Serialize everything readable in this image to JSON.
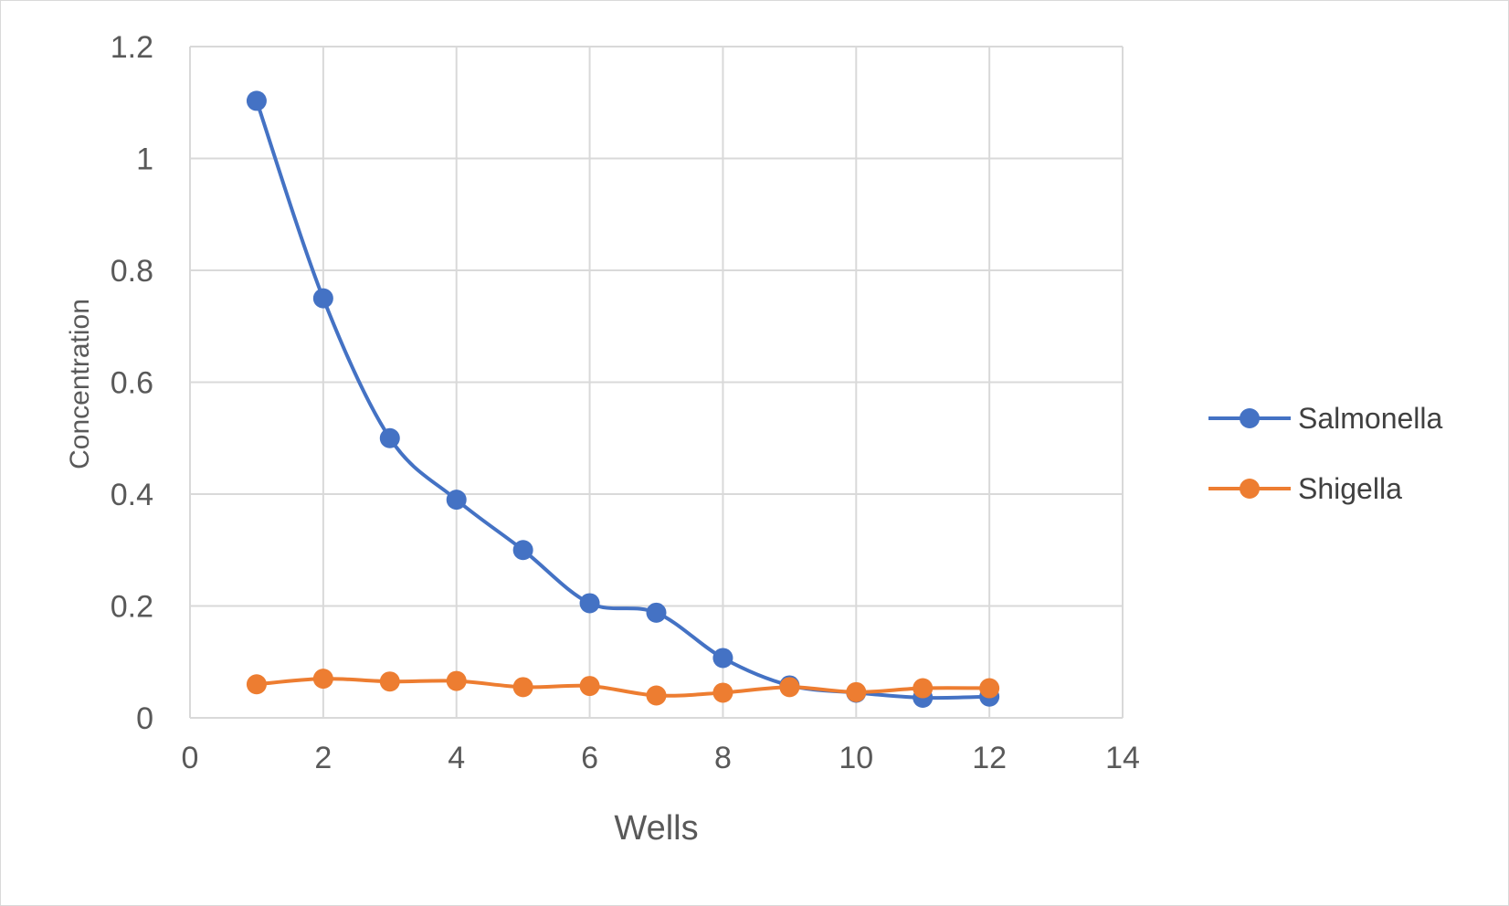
{
  "chart_data": {
    "type": "scatter",
    "title": "",
    "xlabel": "Wells",
    "ylabel": "Concentration",
    "xlim": [
      0,
      14
    ],
    "ylim": [
      0,
      1.2
    ],
    "x_ticks": [
      "0",
      "2",
      "4",
      "6",
      "8",
      "10",
      "12",
      "14"
    ],
    "y_ticks": [
      "0",
      "0.2",
      "0.4",
      "0.6",
      "0.8",
      "1",
      "1.2"
    ],
    "grid": true,
    "smooth_lines": true,
    "markers": true,
    "legend_position": "right",
    "series": [
      {
        "name": "Salmonella",
        "color": "#4472C4",
        "x": [
          1,
          2,
          3,
          4,
          5,
          6,
          7,
          8,
          9,
          10,
          11,
          12
        ],
        "y": [
          1.103,
          0.75,
          0.5,
          0.39,
          0.3,
          0.205,
          0.188,
          0.107,
          0.058,
          0.045,
          0.036,
          0.038
        ]
      },
      {
        "name": "Shigella",
        "color": "#ED7D31",
        "x": [
          1,
          2,
          3,
          4,
          5,
          6,
          7,
          8,
          9,
          10,
          11,
          12
        ],
        "y": [
          0.06,
          0.07,
          0.065,
          0.066,
          0.055,
          0.057,
          0.04,
          0.045,
          0.055,
          0.046,
          0.053,
          0.053
        ]
      }
    ]
  }
}
